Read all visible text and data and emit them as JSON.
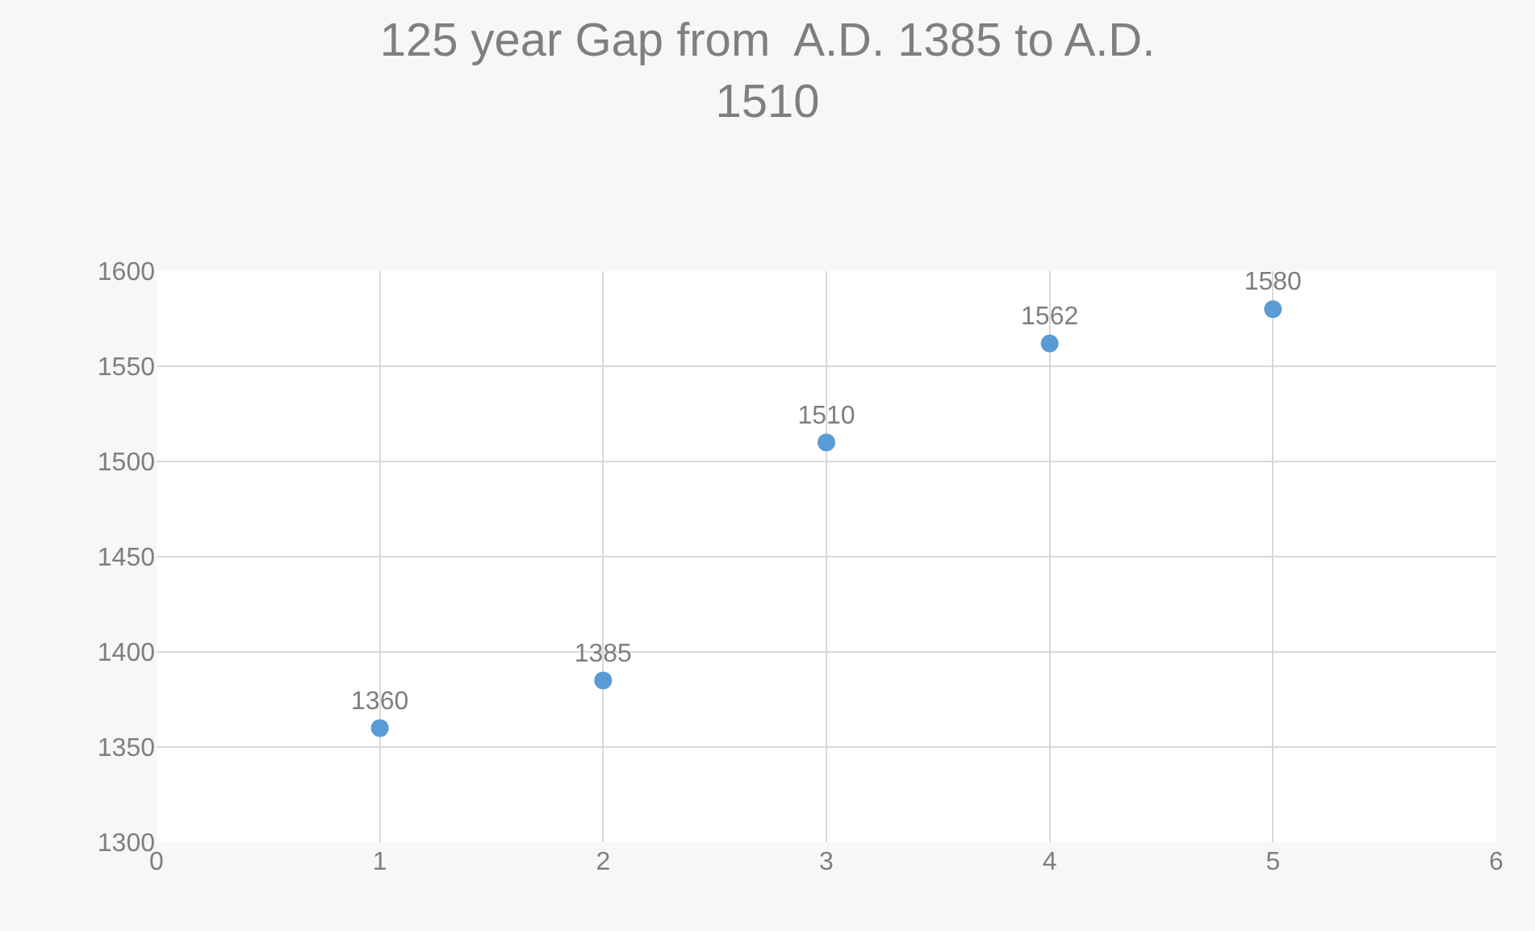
{
  "chart_data": {
    "type": "scatter",
    "title": "125 year Gap from  A.D. 1385 to A.D.\n1510",
    "x": [
      1,
      2,
      3,
      4,
      5
    ],
    "values": [
      1360,
      1385,
      1510,
      1562,
      1580
    ],
    "color": "#5b9bd5",
    "xlim": [
      0,
      6
    ],
    "xticks": [
      0,
      1,
      2,
      3,
      4,
      5,
      6
    ],
    "ylim": [
      1300,
      1600
    ],
    "yticks": [
      1300,
      1350,
      1400,
      1450,
      1500,
      1550,
      1600
    ],
    "grid": true,
    "marker": "circle",
    "data_labels": true,
    "legend": false
  }
}
